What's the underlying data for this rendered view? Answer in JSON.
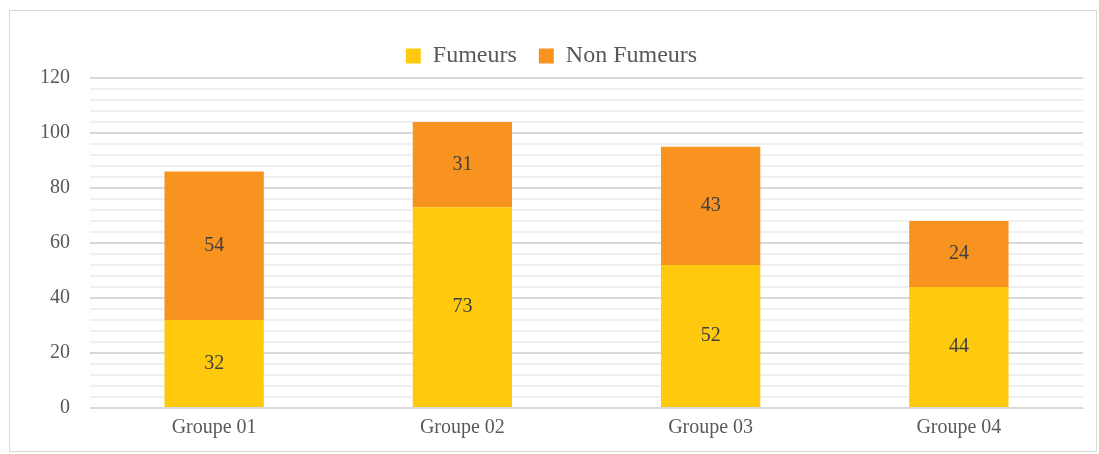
{
  "chart_data": {
    "type": "bar",
    "stacked": true,
    "categories": [
      "Groupe 01",
      "Groupe 02",
      "Groupe 03",
      "Groupe 04"
    ],
    "series": [
      {
        "name": "Fumeurs",
        "color": "#ffc90e",
        "values": [
          32,
          73,
          52,
          44
        ]
      },
      {
        "name": "Non Fumeurs",
        "color": "#f7931e",
        "values": [
          54,
          31,
          43,
          24
        ]
      }
    ],
    "ylim": [
      0,
      120
    ],
    "yticks": [
      0,
      {
        "value": 4,
        "label": null
      },
      {
        "value": 8,
        "label": null
      },
      {
        "value": 12,
        "label": null
      },
      {
        "value": 16,
        "label": null
      },
      20,
      {
        "value": 24,
        "label": null
      },
      {
        "value": 28,
        "label": null
      },
      {
        "value": 32,
        "label": null
      },
      {
        "value": 36,
        "label": null
      },
      40,
      {
        "value": 44,
        "label": null
      },
      {
        "value": 48,
        "label": null
      },
      {
        "value": 52,
        "label": null
      },
      {
        "value": 56,
        "label": null
      },
      60,
      {
        "value": 64,
        "label": null
      },
      {
        "value": 68,
        "label": null
      },
      {
        "value": 72,
        "label": null
      },
      {
        "value": 76,
        "label": null
      },
      80,
      {
        "value": 84,
        "label": null
      },
      {
        "value": 88,
        "label": null
      },
      {
        "value": 92,
        "label": null
      },
      {
        "value": 96,
        "label": null
      },
      100,
      {
        "value": 104,
        "label": null
      },
      {
        "value": 108,
        "label": null
      },
      {
        "value": 112,
        "label": null
      },
      {
        "value": 116,
        "label": null
      },
      120
    ],
    "grid": "y",
    "legend": "top",
    "data_labels": true
  }
}
